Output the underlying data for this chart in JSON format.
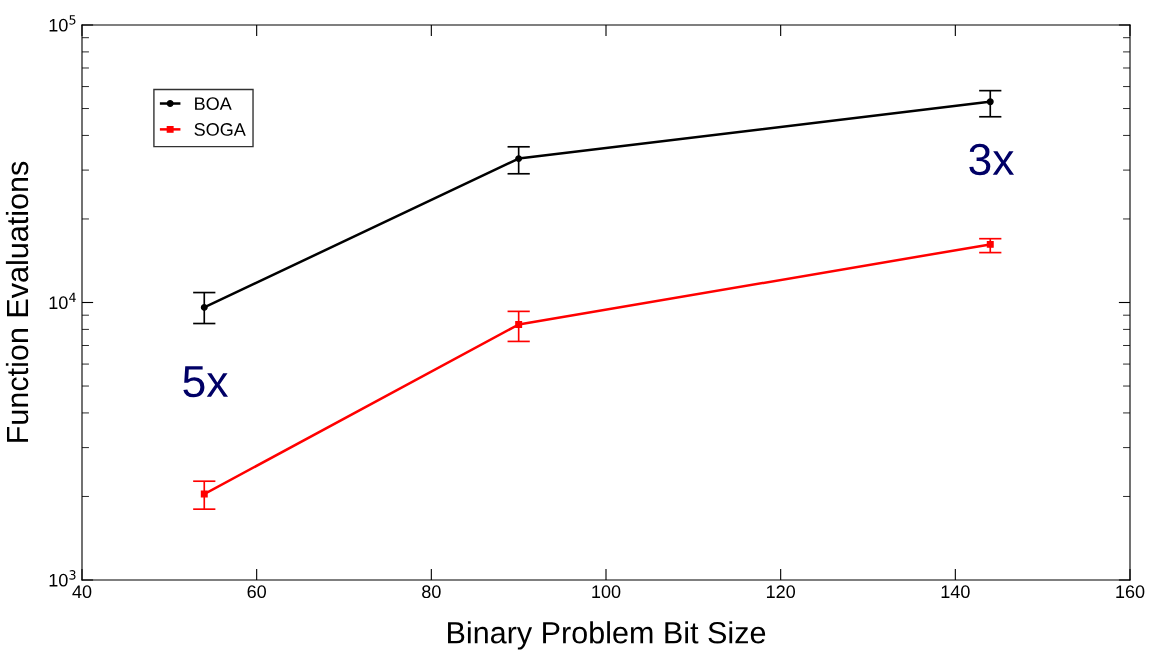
{
  "chart_data": {
    "type": "line",
    "xlabel": "Binary Problem Bit Size",
    "ylabel": "Function Evaluations",
    "x": [
      54,
      90,
      144
    ],
    "series": [
      {
        "name": "BOA",
        "color": "#000000",
        "marker": "circle",
        "values": [
          9600,
          33000,
          52900
        ],
        "errors": [
          [
            8400,
            10860
          ],
          [
            29100,
            36400
          ],
          [
            46700,
            58000
          ]
        ]
      },
      {
        "name": "SOGA",
        "color": "#ff0000",
        "marker": "square",
        "values": [
          2040,
          8330,
          16200
        ],
        "errors": [
          [
            1800,
            2270
          ],
          [
            7240,
            9290
          ],
          [
            15130,
            16980
          ]
        ]
      }
    ],
    "log": "y",
    "xlim": [
      40,
      160
    ],
    "xticks": [
      40,
      60,
      80,
      100,
      120,
      140,
      160
    ],
    "ylim": [
      1000,
      100000
    ],
    "yticks": [
      {
        "value": 1000,
        "label": "10$^{3}$"
      },
      {
        "value": 10000,
        "label": "10$^{4}$"
      },
      {
        "value": 100000,
        "label": "10$^{5}$"
      }
    ],
    "grid": false,
    "legend": "top left",
    "line_style": "solid",
    "annotations": [
      "5x",
      "3x"
    ]
  }
}
